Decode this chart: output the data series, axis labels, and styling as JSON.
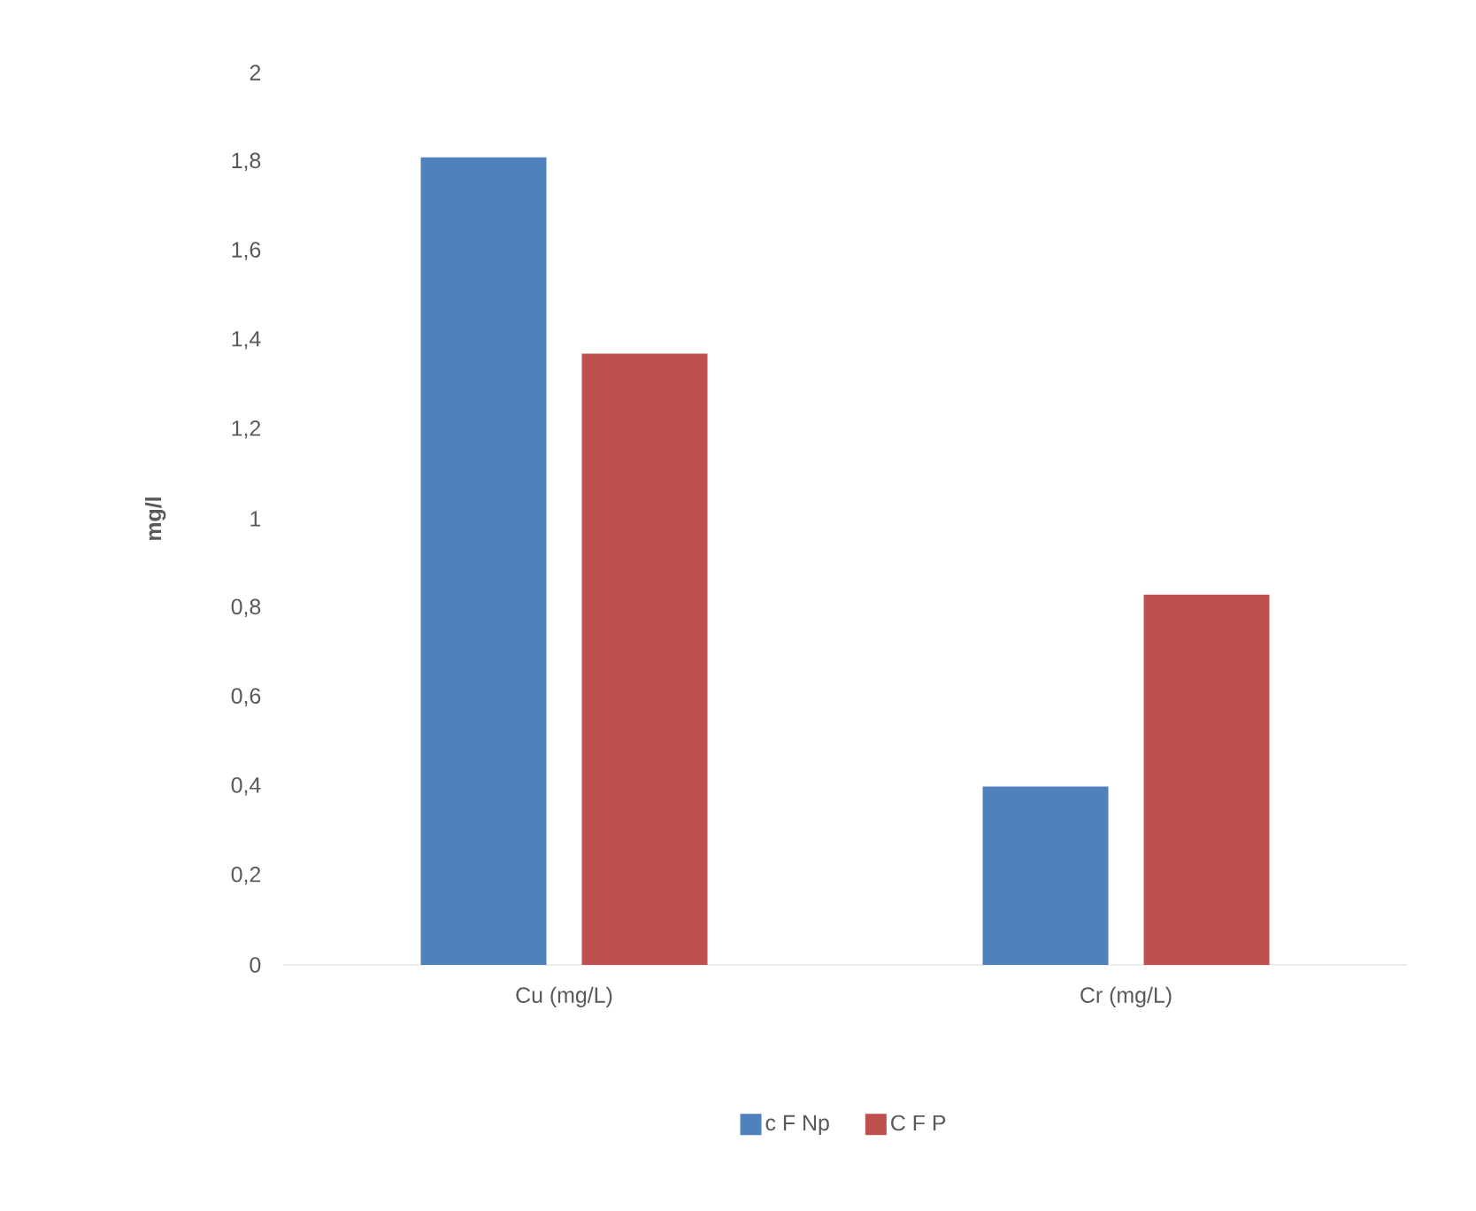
{
  "chart_data": {
    "type": "bar",
    "ylabel": "mg/l",
    "categories": [
      "Cu (mg/L)",
      "Cr (mg/L)"
    ],
    "series": [
      {
        "name": "c F Np",
        "color": "#4f81bd",
        "values": [
          1.81,
          0.4
        ]
      },
      {
        "name": "C F P",
        "color": "#c0504d",
        "values": [
          1.37,
          0.83
        ]
      }
    ],
    "ylim": [
      0,
      2
    ],
    "yticks": [
      0,
      {
        "value": 0.2,
        "label": "0,2"
      },
      {
        "value": 0.4,
        "label": "0,4"
      },
      {
        "value": 0.6,
        "label": "0,6"
      },
      {
        "value": 0.8,
        "label": "0,8"
      },
      1,
      {
        "value": 1.2,
        "label": "1,2"
      },
      {
        "value": 1.4,
        "label": "1,4"
      },
      {
        "value": 1.6,
        "label": "1,6"
      },
      {
        "value": 1.8,
        "label": "1,8"
      },
      2
    ],
    "legend": "bottom"
  }
}
